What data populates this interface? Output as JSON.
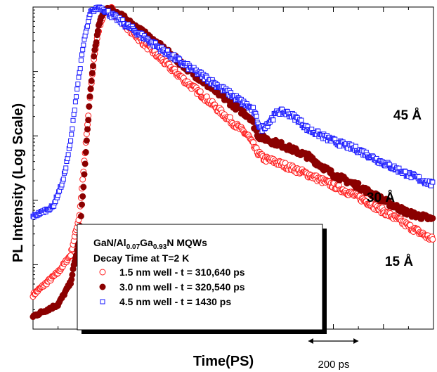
{
  "chart_data": {
    "type": "scatter",
    "title": "",
    "xlabel": "Time(PS)",
    "ylabel": "PL Intensity (Log Scale)",
    "x_scale_bar": "200 ps",
    "yscale": "log",
    "xlim": [
      0,
      1600
    ],
    "ylim_decades": [
      0,
      5
    ],
    "legend": {
      "placement": "bottom-center",
      "title_line1_parts": [
        "GaN/Al",
        "0.07",
        "Ga",
        "0.93",
        "N MQWs"
      ],
      "title_line2": "Decay Time at T=2 K"
    },
    "series": [
      {
        "name": "1.5 nm well - t = 310,640 ps",
        "marker": "open-circle",
        "color": "#ff1a1a",
        "curve_label": "15 Å",
        "points": [
          [
            0,
            0.53
          ],
          [
            100,
            0.88
          ],
          [
            150,
            1.15
          ],
          [
            185,
            1.75
          ],
          [
            205,
            2.6
          ],
          [
            225,
            3.5
          ],
          [
            245,
            4.25
          ],
          [
            265,
            4.7
          ],
          [
            285,
            4.92
          ],
          [
            305,
            5.0
          ],
          [
            345,
            4.82
          ],
          [
            400,
            4.6
          ],
          [
            500,
            4.23
          ],
          [
            600,
            3.88
          ],
          [
            700,
            3.55
          ],
          [
            800,
            3.2
          ],
          [
            860,
            3.0
          ],
          [
            890,
            2.78
          ],
          [
            920,
            2.65
          ],
          [
            950,
            2.62
          ],
          [
            1000,
            2.55
          ],
          [
            1100,
            2.4
          ],
          [
            1200,
            2.23
          ],
          [
            1300,
            2.05
          ],
          [
            1400,
            1.83
          ],
          [
            1500,
            1.6
          ],
          [
            1600,
            1.38
          ]
        ]
      },
      {
        "name": "3.0 nm well - t = 320,540 ps",
        "marker": "filled-circle",
        "color": "#8b0000",
        "curve_label": "30 Å",
        "points": [
          [
            0,
            0.2
          ],
          [
            100,
            0.38
          ],
          [
            150,
            0.72
          ],
          [
            185,
            1.4
          ],
          [
            205,
            2.4
          ],
          [
            225,
            3.5
          ],
          [
            245,
            4.3
          ],
          [
            265,
            4.75
          ],
          [
            285,
            4.95
          ],
          [
            305,
            5.0
          ],
          [
            345,
            4.88
          ],
          [
            400,
            4.72
          ],
          [
            500,
            4.42
          ],
          [
            600,
            4.1
          ],
          [
            700,
            3.78
          ],
          [
            800,
            3.48
          ],
          [
            870,
            3.28
          ],
          [
            900,
            3.0
          ],
          [
            950,
            2.92
          ],
          [
            1000,
            2.85
          ],
          [
            1100,
            2.68
          ],
          [
            1200,
            2.4
          ],
          [
            1300,
            2.22
          ],
          [
            1400,
            2.0
          ],
          [
            1500,
            1.8
          ],
          [
            1600,
            1.7
          ]
        ]
      },
      {
        "name": "4.5 nm well - t = 1430 ps",
        "marker": "open-square",
        "color": "#1a1aff",
        "curve_label": "45 Å",
        "points": [
          [
            0,
            1.75
          ],
          [
            80,
            1.9
          ],
          [
            120,
            2.3
          ],
          [
            150,
            2.9
          ],
          [
            175,
            3.7
          ],
          [
            205,
            4.5
          ],
          [
            230,
            4.92
          ],
          [
            265,
            5.0
          ],
          [
            305,
            4.9
          ],
          [
            400,
            4.65
          ],
          [
            500,
            4.38
          ],
          [
            600,
            4.12
          ],
          [
            700,
            3.88
          ],
          [
            800,
            3.62
          ],
          [
            880,
            3.4
          ],
          [
            910,
            3.1
          ],
          [
            940,
            3.2
          ],
          [
            980,
            3.38
          ],
          [
            1020,
            3.35
          ],
          [
            1060,
            3.25
          ],
          [
            1100,
            3.1
          ],
          [
            1200,
            2.92
          ],
          [
            1300,
            2.78
          ],
          [
            1400,
            2.58
          ],
          [
            1500,
            2.4
          ],
          [
            1600,
            2.24
          ]
        ]
      }
    ]
  }
}
